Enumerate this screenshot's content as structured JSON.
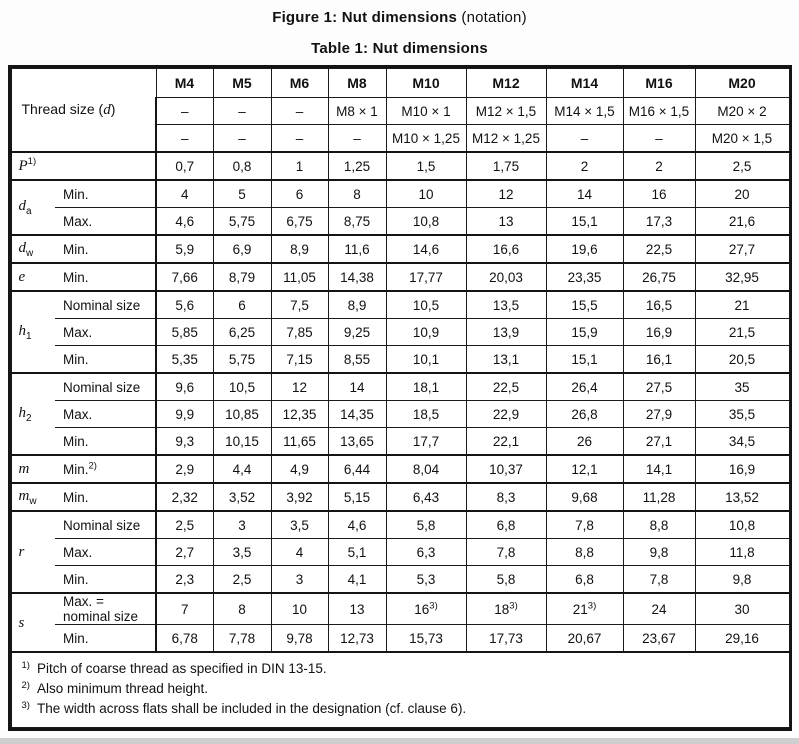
{
  "titles": {
    "figure_bold": "Figure 1: Nut dimensions",
    "figure_normal": "(notation)",
    "table": "Table 1: Nut dimensions"
  },
  "table": {
    "corner_label": "Thread size (*d*)",
    "columns": [
      "M4",
      "M5",
      "M6",
      "M8",
      "M10",
      "M12",
      "M14",
      "M16",
      "M20"
    ],
    "thread_rows": [
      [
        "–",
        "–",
        "–",
        "M8 × 1",
        "M10 × 1",
        "M12 × 1,5",
        "M14 × 1,5",
        "M16 × 1,5",
        "M20 × 2"
      ],
      [
        "–",
        "–",
        "–",
        "–",
        "M10 × 1,25",
        "M12 × 1,25",
        "–",
        "–",
        "M20 × 1,5"
      ]
    ],
    "groups": [
      {
        "symbol": "*P*^1)",
        "rows": [
          {
            "label": "",
            "values": [
              "0,7",
              "0,8",
              "1",
              "1,25",
              "1,5",
              "1,75",
              "2",
              "2",
              "2,5"
            ]
          }
        ]
      },
      {
        "symbol": "*d*_a",
        "rows": [
          {
            "label": "Min.",
            "values": [
              "4",
              "5",
              "6",
              "8",
              "10",
              "12",
              "14",
              "16",
              "20"
            ]
          },
          {
            "label": "Max.",
            "values": [
              "4,6",
              "5,75",
              "6,75",
              "8,75",
              "10,8",
              "13",
              "15,1",
              "17,3",
              "21,6"
            ]
          }
        ]
      },
      {
        "symbol": "*d*_w",
        "rows": [
          {
            "label": "Min.",
            "values": [
              "5,9",
              "6,9",
              "8,9",
              "11,6",
              "14,6",
              "16,6",
              "19,6",
              "22,5",
              "27,7"
            ]
          }
        ]
      },
      {
        "symbol": "*e*",
        "rows": [
          {
            "label": "Min.",
            "values": [
              "7,66",
              "8,79",
              "11,05",
              "14,38",
              "17,77",
              "20,03",
              "23,35",
              "26,75",
              "32,95"
            ]
          }
        ]
      },
      {
        "symbol": "*h*_1",
        "rows": [
          {
            "label": "Nominal size",
            "values": [
              "5,6",
              "6",
              "7,5",
              "8,9",
              "10,5",
              "13,5",
              "15,5",
              "16,5",
              "21"
            ]
          },
          {
            "label": "Max.",
            "values": [
              "5,85",
              "6,25",
              "7,85",
              "9,25",
              "10,9",
              "13,9",
              "15,9",
              "16,9",
              "21,5"
            ]
          },
          {
            "label": "Min.",
            "values": [
              "5,35",
              "5,75",
              "7,15",
              "8,55",
              "10,1",
              "13,1",
              "15,1",
              "16,1",
              "20,5"
            ]
          }
        ]
      },
      {
        "symbol": "*h*_2",
        "rows": [
          {
            "label": "Nominal size",
            "values": [
              "9,6",
              "10,5",
              "12",
              "14",
              "18,1",
              "22,5",
              "26,4",
              "27,5",
              "35"
            ]
          },
          {
            "label": "Max.",
            "values": [
              "9,9",
              "10,85",
              "12,35",
              "14,35",
              "18,5",
              "22,9",
              "26,8",
              "27,9",
              "35,5"
            ]
          },
          {
            "label": "Min.",
            "values": [
              "9,3",
              "10,15",
              "11,65",
              "13,65",
              "17,7",
              "22,1",
              "26",
              "27,1",
              "34,5"
            ]
          }
        ]
      },
      {
        "symbol": "*m*",
        "rows": [
          {
            "label": "Min.^2)",
            "values": [
              "2,9",
              "4,4",
              "4,9",
              "6,44",
              "8,04",
              "10,37",
              "12,1",
              "14,1",
              "16,9"
            ]
          }
        ]
      },
      {
        "symbol": "*m*_w",
        "rows": [
          {
            "label": "Min.",
            "values": [
              "2,32",
              "3,52",
              "3,92",
              "5,15",
              "6,43",
              "8,3",
              "9,68",
              "11,28",
              "13,52"
            ]
          }
        ]
      },
      {
        "symbol": "*r*",
        "rows": [
          {
            "label": "Nominal size",
            "values": [
              "2,5",
              "3",
              "3,5",
              "4,6",
              "5,8",
              "6,8",
              "7,8",
              "8,8",
              "10,8"
            ]
          },
          {
            "label": "Max.",
            "values": [
              "2,7",
              "3,5",
              "4",
              "5,1",
              "6,3",
              "7,8",
              "8,8",
              "9,8",
              "11,8"
            ]
          },
          {
            "label": "Min.",
            "values": [
              "2,3",
              "2,5",
              "3",
              "4,1",
              "5,3",
              "5,8",
              "6,8",
              "7,8",
              "9,8"
            ]
          }
        ]
      },
      {
        "symbol": "*s*",
        "rows": [
          {
            "label": "Max. = nominal size",
            "values": [
              "7",
              "8",
              "10",
              "13",
              "16^3)",
              "18^3)",
              "21^3)",
              "24",
              "30"
            ]
          },
          {
            "label": "Min.",
            "values": [
              "6,78",
              "7,78",
              "9,78",
              "12,73",
              "15,73",
              "17,73",
              "20,67",
              "23,67",
              "29,16"
            ]
          }
        ]
      }
    ],
    "footnotes": [
      {
        "marker": "1)",
        "text": "Pitch of coarse thread as specified in DIN 13-15."
      },
      {
        "marker": "2)",
        "text": "Also minimum thread height."
      },
      {
        "marker": "3)",
        "text": "The width across flats shall be included in the designation (cf. clause 6)."
      }
    ]
  }
}
